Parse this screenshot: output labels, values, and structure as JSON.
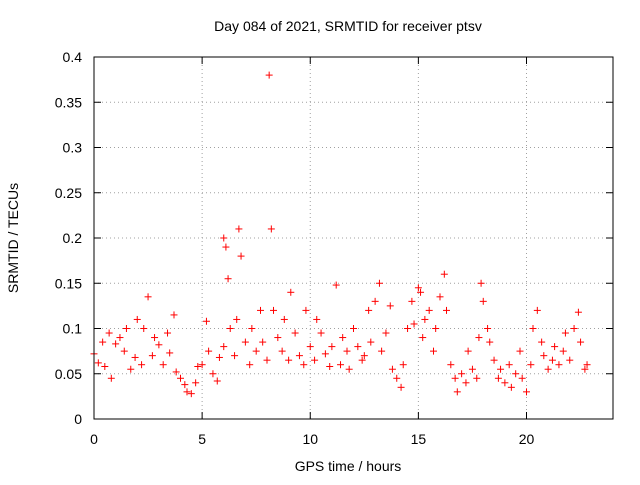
{
  "chart_data": {
    "type": "scatter",
    "title": "Day 084 of 2021, SRMTID for receiver ptsv",
    "xlabel": "GPS time / hours",
    "ylabel": "SRMTID / TECUs",
    "xlim": [
      0,
      24
    ],
    "ylim": [
      0,
      0.4
    ],
    "xticks": [
      0,
      5,
      10,
      15,
      20
    ],
    "xtick_labels": [
      "0",
      "5",
      "10",
      "15",
      "20"
    ],
    "yticks": [
      0,
      0.05,
      0.1,
      0.15,
      0.2,
      0.25,
      0.3,
      0.35,
      0.4
    ],
    "ytick_labels": [
      "0",
      "0.05",
      "0.1",
      "0.15",
      "0.2",
      "0.25",
      "0.3",
      "0.35",
      "0.4"
    ],
    "grid": true,
    "marker": "+",
    "color": "#ff0000",
    "series": [
      {
        "name": "SRMTID",
        "x": [
          0.0,
          0.2,
          0.4,
          0.5,
          0.7,
          0.8,
          1.0,
          1.2,
          1.4,
          1.5,
          1.7,
          1.9,
          2.0,
          2.2,
          2.3,
          2.5,
          2.7,
          2.8,
          3.0,
          3.2,
          3.4,
          3.5,
          3.7,
          3.8,
          4.0,
          4.2,
          4.3,
          4.5,
          4.7,
          4.8,
          5.0,
          5.2,
          5.3,
          5.5,
          5.7,
          5.8,
          6.0,
          6.0,
          6.1,
          6.2,
          6.3,
          6.5,
          6.6,
          6.7,
          6.8,
          7.0,
          7.2,
          7.3,
          7.5,
          7.7,
          7.8,
          8.0,
          8.1,
          8.2,
          8.3,
          8.5,
          8.7,
          8.8,
          9.0,
          9.1,
          9.3,
          9.5,
          9.7,
          9.8,
          10.0,
          10.2,
          10.3,
          10.5,
          10.7,
          10.9,
          11.0,
          11.2,
          11.4,
          11.5,
          11.7,
          11.8,
          12.0,
          12.2,
          12.4,
          12.5,
          12.7,
          12.8,
          13.0,
          13.2,
          13.3,
          13.5,
          13.7,
          13.8,
          14.0,
          14.2,
          14.3,
          14.5,
          14.7,
          14.8,
          15.0,
          15.1,
          15.2,
          15.3,
          15.5,
          15.7,
          15.8,
          16.0,
          16.2,
          16.3,
          16.5,
          16.7,
          16.8,
          17.0,
          17.2,
          17.3,
          17.5,
          17.7,
          17.8,
          17.9,
          18.0,
          18.2,
          18.3,
          18.5,
          18.7,
          18.8,
          19.0,
          19.2,
          19.3,
          19.5,
          19.7,
          19.8,
          20.0,
          20.2,
          20.3,
          20.5,
          20.7,
          20.8,
          21.0,
          21.2,
          21.3,
          21.5,
          21.7,
          21.8,
          22.0,
          22.2,
          22.4,
          22.5,
          22.7,
          22.8
        ],
        "y": [
          0.072,
          0.062,
          0.085,
          0.058,
          0.095,
          0.045,
          0.083,
          0.09,
          0.075,
          0.1,
          0.055,
          0.068,
          0.11,
          0.06,
          0.1,
          0.135,
          0.07,
          0.09,
          0.082,
          0.06,
          0.095,
          0.073,
          0.115,
          0.052,
          0.045,
          0.038,
          0.03,
          0.028,
          0.04,
          0.058,
          0.06,
          0.108,
          0.075,
          0.05,
          0.042,
          0.068,
          0.08,
          0.2,
          0.19,
          0.155,
          0.1,
          0.07,
          0.11,
          0.21,
          0.18,
          0.085,
          0.06,
          0.1,
          0.075,
          0.12,
          0.085,
          0.065,
          0.38,
          0.21,
          0.12,
          0.09,
          0.075,
          0.11,
          0.065,
          0.14,
          0.095,
          0.07,
          0.06,
          0.12,
          0.08,
          0.065,
          0.11,
          0.095,
          0.072,
          0.058,
          0.08,
          0.148,
          0.06,
          0.09,
          0.075,
          0.055,
          0.1,
          0.08,
          0.065,
          0.07,
          0.12,
          0.085,
          0.13,
          0.15,
          0.075,
          0.095,
          0.125,
          0.055,
          0.045,
          0.035,
          0.06,
          0.1,
          0.13,
          0.105,
          0.145,
          0.14,
          0.09,
          0.11,
          0.12,
          0.075,
          0.1,
          0.135,
          0.16,
          0.12,
          0.06,
          0.045,
          0.03,
          0.05,
          0.04,
          0.075,
          0.055,
          0.045,
          0.09,
          0.15,
          0.13,
          0.1,
          0.085,
          0.065,
          0.045,
          0.055,
          0.04,
          0.06,
          0.035,
          0.05,
          0.075,
          0.045,
          0.03,
          0.06,
          0.1,
          0.12,
          0.085,
          0.07,
          0.055,
          0.065,
          0.08,
          0.06,
          0.075,
          0.095,
          0.065,
          0.1,
          0.118,
          0.085,
          0.055,
          0.06
        ]
      }
    ]
  }
}
